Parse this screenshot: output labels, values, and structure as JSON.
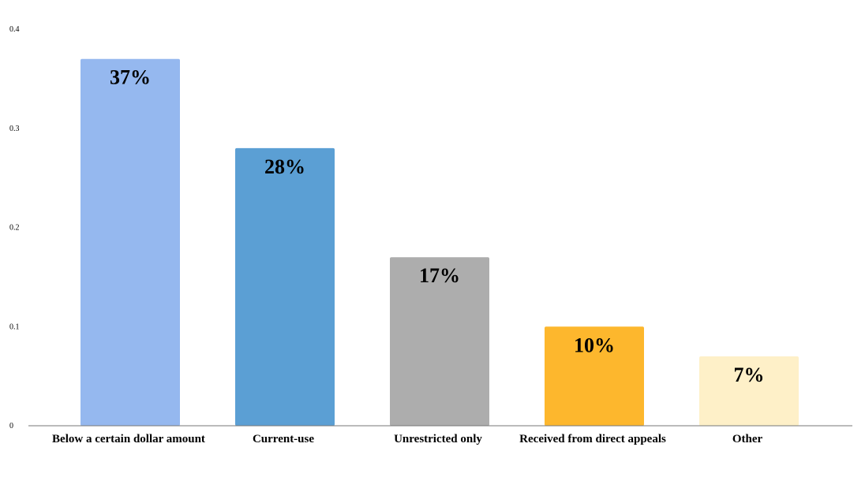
{
  "chart_data": {
    "type": "bar",
    "categories": [
      "Below a certain dollar amount",
      "Current-use",
      "Unrestricted only",
      "Received from direct appeals",
      "Other"
    ],
    "values": [
      0.37,
      0.28,
      0.17,
      0.1,
      0.07
    ],
    "data_labels": [
      "37%",
      "28%",
      "17%",
      "10%",
      "7%"
    ],
    "colors": [
      "#95b8ef",
      "#5b9fd4",
      "#adadad",
      "#fdb72d",
      "#fef0c8"
    ],
    "yticks": [
      "0",
      "0.1",
      "0.2",
      "0.3",
      "0.4"
    ],
    "ytick_values": [
      0,
      0.1,
      0.2,
      0.3,
      0.4
    ],
    "ylim": [
      0,
      0.4
    ],
    "title": "",
    "xlabel": "",
    "ylabel": "",
    "grid": false,
    "legend": "none"
  }
}
